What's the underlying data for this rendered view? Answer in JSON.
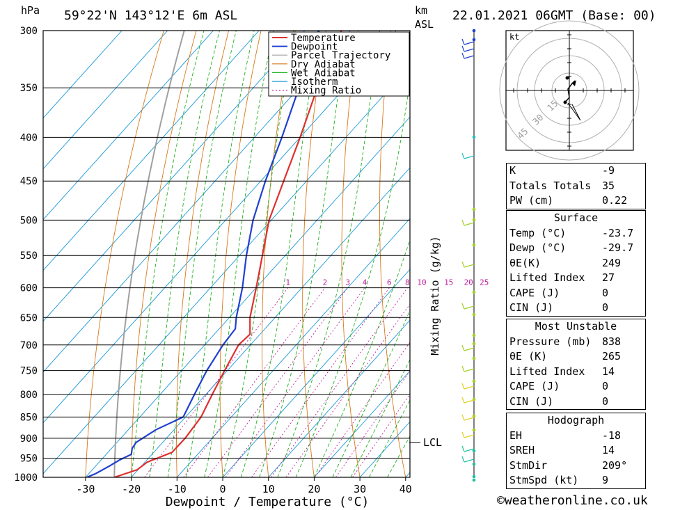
{
  "header": {
    "units_hpa": "hPa",
    "location": "59°22'N 143°12'E 6m ASL",
    "km_label": "km",
    "asl_label": "ASL",
    "datetime": "22.01.2021 06GMT (Base: 00)",
    "mixing_axis_label": "Mixing Ratio (g/kg)",
    "lcl_label": "LCL",
    "hodo_unit": "kt",
    "copyright": "©weatheronline.co.uk"
  },
  "chart_data": {
    "type": "line",
    "title": "59°22'N 143°12'E 6m ASL",
    "xlabel": "Dewpoint / Temperature (°C)",
    "ylabel": "hPa",
    "xlim": [
      -40,
      40
    ],
    "pressure_levels": [
      300,
      350,
      400,
      450,
      500,
      550,
      600,
      650,
      700,
      750,
      800,
      850,
      900,
      950,
      1000
    ],
    "x_ticks": [
      -30,
      -20,
      -10,
      0,
      10,
      20,
      30,
      40
    ],
    "mixing_ratio_labels": [
      "1",
      "2",
      "3",
      "4",
      "6",
      "8",
      "10",
      "15",
      "20",
      "25"
    ],
    "legend": [
      "Temperature",
      "Dewpoint",
      "Parcel Trajectory",
      "Dry Adiabat",
      "Wet Adiabat",
      "Isotherm",
      "Mixing Ratio"
    ],
    "colors": {
      "temperature": "#e03030",
      "dewpoint": "#2040d0",
      "parcel": "#a0a0a0",
      "dry_adiabat": "#d87818",
      "wet_adiabat": "#20b020",
      "isotherm": "#1898d8",
      "mixing_ratio": "#c020a0"
    },
    "series": [
      {
        "name": "Temperature",
        "points": [
          [
            1000,
            -23.7
          ],
          [
            980,
            -20.2
          ],
          [
            960,
            -19.5
          ],
          [
            935,
            -16
          ],
          [
            900,
            -15.9
          ],
          [
            850,
            -16.6
          ],
          [
            800,
            -18.6
          ],
          [
            750,
            -20.6
          ],
          [
            700,
            -22.6
          ],
          [
            680,
            -22.2
          ],
          [
            650,
            -25.5
          ],
          [
            600,
            -30
          ],
          [
            550,
            -35
          ],
          [
            500,
            -40.5
          ],
          [
            450,
            -45
          ],
          [
            400,
            -50
          ],
          [
            350,
            -56
          ],
          [
            300,
            -62
          ]
        ]
      },
      {
        "name": "Dewpoint",
        "points": [
          [
            1000,
            -29.7
          ],
          [
            990,
            -28.5
          ],
          [
            970,
            -27
          ],
          [
            955,
            -26
          ],
          [
            940,
            -24.5
          ],
          [
            925,
            -25.5
          ],
          [
            910,
            -25.8
          ],
          [
            880,
            -24
          ],
          [
            850,
            -20.5
          ],
          [
            800,
            -22.5
          ],
          [
            750,
            -24.5
          ],
          [
            700,
            -26
          ],
          [
            670,
            -26.5
          ],
          [
            650,
            -28.5
          ],
          [
            600,
            -33
          ],
          [
            550,
            -38.5
          ],
          [
            500,
            -44
          ],
          [
            450,
            -49
          ],
          [
            400,
            -54
          ],
          [
            350,
            -60
          ],
          [
            300,
            -67
          ]
        ]
      }
    ]
  },
  "hodograph": {
    "ring_labels": [
      "15",
      "30",
      "45"
    ]
  },
  "indices": [
    {
      "label": "K",
      "value": "-9"
    },
    {
      "label": "Totals Totals",
      "value": "35"
    },
    {
      "label": "PW (cm)",
      "value": "0.22"
    }
  ],
  "surface": {
    "caption": "Surface",
    "rows": [
      {
        "label": "Temp (°C)",
        "value": "-23.7"
      },
      {
        "label": "Dewp (°C)",
        "value": "-29.7"
      },
      {
        "label": "θE(K)",
        "value": "249"
      },
      {
        "label": "Lifted Index",
        "value": "27"
      },
      {
        "label": "CAPE (J)",
        "value": "0"
      },
      {
        "label": "CIN (J)",
        "value": "0"
      }
    ]
  },
  "most_unstable": {
    "caption": "Most Unstable",
    "rows": [
      {
        "label": "Pressure (mb)",
        "value": "838"
      },
      {
        "label": "θE (K)",
        "value": "265"
      },
      {
        "label": "Lifted Index",
        "value": "14"
      },
      {
        "label": "CAPE (J)",
        "value": "0"
      },
      {
        "label": "CIN (J)",
        "value": "0"
      }
    ]
  },
  "hodograph_table": {
    "caption": "Hodograph",
    "rows": [
      {
        "label": "EH",
        "value": "-18"
      },
      {
        "label": "SREH",
        "value": "14"
      },
      {
        "label": "StmDir",
        "value": "209°"
      },
      {
        "label": "StmSpd (kt)",
        "value": "9"
      }
    ]
  }
}
